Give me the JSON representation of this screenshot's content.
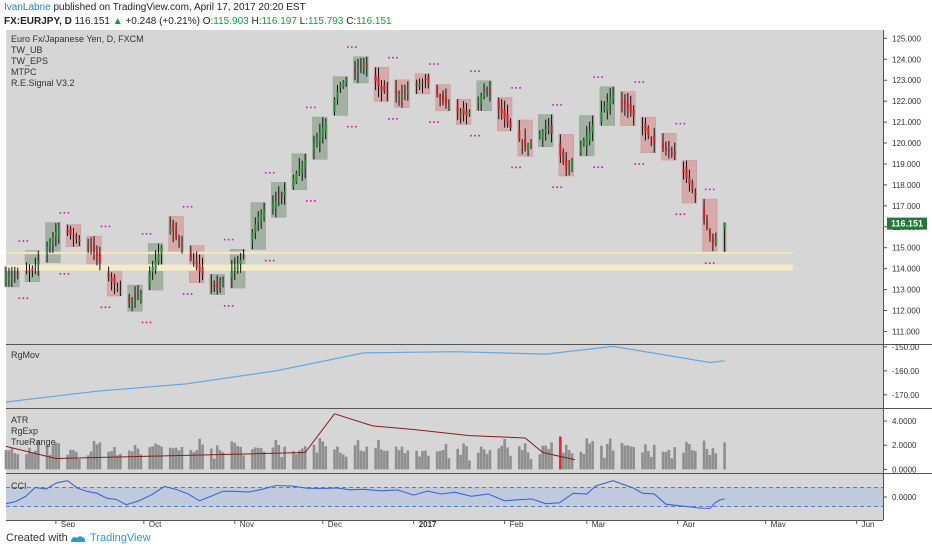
{
  "header": {
    "author": "IvanLabrie",
    "published_text": " published on TradingView.com, April 17, 2017 20:20 EST",
    "symbol": "FX:EURJPY, D",
    "last": "116.151",
    "change_arrow": "▲",
    "change": "+0.248 (+0.21%)",
    "o_label": "O:",
    "o_value": "115.903",
    "h_label": "H:",
    "h_value": "116.197",
    "l_label": "L:",
    "l_value": "115.793",
    "c_label": "C:",
    "c_value": "116.151"
  },
  "main_pane": {
    "legend": [
      "Euro Fx/Japanese Yen, D, FXCM",
      "TW_UB",
      "TW_EPS",
      "MTPC",
      "R.E.Signal V3.2"
    ],
    "price_tag": "116.151"
  },
  "pane_labels": {
    "rgmov": "RgMov",
    "atr": [
      "ATR",
      "RgExp",
      "TrueRange"
    ],
    "cci": "CCI"
  },
  "footer": {
    "created_with": "Created with",
    "brand": "TradingView"
  },
  "colors": {
    "background": "#d6d6d6",
    "bull_candle": "#2e8b3a",
    "bear_candle": "#c0282e",
    "bull_box": "#93a593",
    "bear_box": "#d99b9b",
    "support_band": "#f3ecd0",
    "rgmov_line": "#64a8e6",
    "cci_line": "#3a66d8",
    "cci_band": "#b9c8de",
    "atr_line": "#8b1a1a"
  },
  "chart_data": [
    {
      "type": "candlestick",
      "pane": "price",
      "x_tick_labels": [
        "Sep",
        "Oct",
        "Nov",
        "Dec",
        "2017",
        "Feb",
        "Mar",
        "Apr",
        "May",
        "Jun"
      ],
      "y_tick_labels": [
        "111.000",
        "112.000",
        "113.000",
        "114.000",
        "115.000",
        "116.000",
        "117.000",
        "118.000",
        "119.000",
        "120.000",
        "121.000",
        "122.000",
        "123.000",
        "124.000",
        "125.000"
      ],
      "ylim": [
        110.4,
        125.4
      ],
      "close_path": [
        {
          "date": "2016-08-15",
          "close": 113.6
        },
        {
          "date": "2016-08-24",
          "close": 113.9
        },
        {
          "date": "2016-09-02",
          "close": 116.0
        },
        {
          "date": "2016-09-13",
          "close": 115.0
        },
        {
          "date": "2016-09-20",
          "close": 113.4
        },
        {
          "date": "2016-09-26",
          "close": 112.4
        },
        {
          "date": "2016-09-30",
          "close": 112.8
        },
        {
          "date": "2016-10-10",
          "close": 116.0
        },
        {
          "date": "2016-10-19",
          "close": 114.0
        },
        {
          "date": "2016-10-26",
          "close": 113.0
        },
        {
          "date": "2016-11-04",
          "close": 114.6
        },
        {
          "date": "2016-11-09",
          "close": 116.5
        },
        {
          "date": "2016-11-17",
          "close": 117.5
        },
        {
          "date": "2016-11-25",
          "close": 119.2
        },
        {
          "date": "2016-12-02",
          "close": 121.0
        },
        {
          "date": "2016-12-07",
          "close": 122.8
        },
        {
          "date": "2016-12-15",
          "close": 123.8
        },
        {
          "date": "2016-12-21",
          "close": 122.5
        },
        {
          "date": "2016-12-28",
          "close": 122.3
        },
        {
          "date": "2017-01-05",
          "close": 123.0
        },
        {
          "date": "2017-01-12",
          "close": 121.8
        },
        {
          "date": "2017-01-19",
          "close": 121.3
        },
        {
          "date": "2017-01-26",
          "close": 122.6
        },
        {
          "date": "2017-02-02",
          "close": 120.9
        },
        {
          "date": "2017-02-08",
          "close": 119.8
        },
        {
          "date": "2017-02-16",
          "close": 120.8
        },
        {
          "date": "2017-02-22",
          "close": 118.7
        },
        {
          "date": "2017-03-02",
          "close": 120.6
        },
        {
          "date": "2017-03-10",
          "close": 122.4
        },
        {
          "date": "2017-03-17",
          "close": 121.3
        },
        {
          "date": "2017-03-24",
          "close": 120.0
        },
        {
          "date": "2017-03-31",
          "close": 119.4
        },
        {
          "date": "2017-04-07",
          "close": 117.5
        },
        {
          "date": "2017-04-13",
          "close": 115.2
        },
        {
          "date": "2017-04-17",
          "close": 116.151
        }
      ],
      "support_zone": {
        "y1": 114.7,
        "y2": 114.8
      },
      "support_zone_2": {
        "y1": 113.9,
        "y2": 114.2
      }
    },
    {
      "type": "line",
      "pane": "RgMov",
      "y_tick_labels": [
        "-150.00",
        "-160.00",
        "-170.00"
      ],
      "ylim": [
        -175.5,
        -149.2
      ],
      "series": [
        {
          "values": [
            {
              "date": "2016-08-15",
              "value": -173.0
            },
            {
              "date": "2016-09-15",
              "value": -168.5
            },
            {
              "date": "2016-10-15",
              "value": -165.5
            },
            {
              "date": "2016-11-15",
              "value": -160.0
            },
            {
              "date": "2016-12-15",
              "value": -152.5
            },
            {
              "date": "2017-01-15",
              "value": -152.0
            },
            {
              "date": "2017-02-15",
              "value": -153.0
            },
            {
              "date": "2017-03-10",
              "value": -149.8
            },
            {
              "date": "2017-04-12",
              "value": -156.5
            },
            {
              "date": "2017-04-17",
              "value": -155.8
            }
          ]
        }
      ]
    },
    {
      "type": "bar",
      "pane": "ATR",
      "y_tick_labels": [
        "0.0000",
        "2.0000",
        "4.0000"
      ],
      "ylim": [
        -0.3,
        5.0
      ],
      "line_series": [
        {
          "values": [
            {
              "date": "2016-08-15",
              "value": 1.9
            },
            {
              "date": "2016-09-01",
              "value": 0.9
            },
            {
              "date": "2016-11-25",
              "value": 1.4
            },
            {
              "date": "2016-12-05",
              "value": 4.6
            },
            {
              "date": "2016-12-18",
              "value": 3.6
            },
            {
              "date": "2017-01-01",
              "value": 3.3
            },
            {
              "date": "2017-01-20",
              "value": 2.8
            },
            {
              "date": "2017-02-08",
              "value": 2.6
            },
            {
              "date": "2017-02-14",
              "value": 1.4
            },
            {
              "date": "2017-02-25",
              "value": 0.8
            }
          ]
        }
      ]
    },
    {
      "type": "line",
      "pane": "CCI",
      "y_tick_labels": [
        "0.0000"
      ],
      "ylim": [
        -2.4,
        2.4
      ],
      "band": [
        -1.0,
        1.0
      ],
      "series": [
        {
          "values": [
            {
              "date": "2016-08-15",
              "value": -0.7
            },
            {
              "date": "2016-08-25",
              "value": 1.0
            },
            {
              "date": "2016-09-05",
              "value": 1.7
            },
            {
              "date": "2016-09-15",
              "value": 0.4
            },
            {
              "date": "2016-09-25",
              "value": -0.8
            },
            {
              "date": "2016-10-08",
              "value": 1.1
            },
            {
              "date": "2016-10-20",
              "value": -0.4
            },
            {
              "date": "2016-11-01",
              "value": 0.6
            },
            {
              "date": "2016-11-15",
              "value": 1.2
            },
            {
              "date": "2016-12-01",
              "value": 0.9
            },
            {
              "date": "2016-12-15",
              "value": 0.8
            },
            {
              "date": "2017-01-01",
              "value": 0.2
            },
            {
              "date": "2017-01-15",
              "value": 0.5
            },
            {
              "date": "2017-02-01",
              "value": -0.4
            },
            {
              "date": "2017-02-15",
              "value": -0.7
            },
            {
              "date": "2017-03-01",
              "value": 0.3
            },
            {
              "date": "2017-03-10",
              "value": 1.7
            },
            {
              "date": "2017-03-20",
              "value": 0.4
            },
            {
              "date": "2017-04-01",
              "value": -0.9
            },
            {
              "date": "2017-04-12",
              "value": -1.2
            },
            {
              "date": "2017-04-17",
              "value": -0.2
            }
          ]
        }
      ]
    }
  ]
}
